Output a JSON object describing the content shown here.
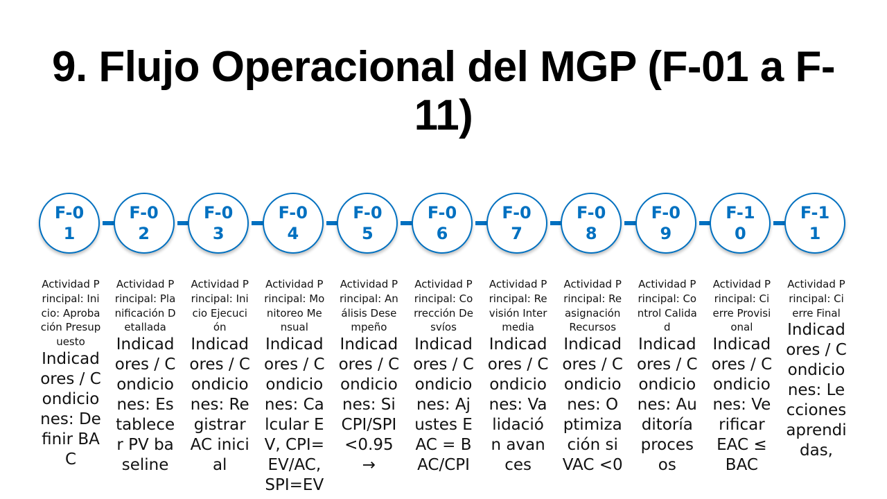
{
  "title": "9. Flujo Operacional del MGP (F-01 a F-11)",
  "accent_color": "#0070C0",
  "arrow_icon": "right-arrow",
  "steps": [
    {
      "id": "F-01",
      "activity": "Actividad Principal: Inicio: Aprobación Presupuesto",
      "indicators": "Indicadores / Condiciones: Definir BAC"
    },
    {
      "id": "F-02",
      "activity": "Actividad Principal: Planificación Detallada",
      "indicators": "Indicadores / Condiciones: Establecer PV baseline"
    },
    {
      "id": "F-03",
      "activity": "Actividad Principal: Inicio Ejecución",
      "indicators": "Indicadores / Condiciones: Registrar AC inicial"
    },
    {
      "id": "F-04",
      "activity": "Actividad Principal: Monitoreo Mensual",
      "indicators": "Indicadores / Condiciones: Calcular EV, CPI=EV/AC, SPI=EV"
    },
    {
      "id": "F-05",
      "activity": "Actividad Principal: Análisis Desempeño",
      "indicators": "Indicadores / Condiciones: Si CPI/SPI <0.95 →"
    },
    {
      "id": "F-06",
      "activity": "Actividad Principal: Corrección Desvíos",
      "indicators": "Indicadores / Condiciones: Ajustes EAC = BAC/CPI"
    },
    {
      "id": "F-07",
      "activity": "Actividad Principal: Revisión Intermedia",
      "indicators": "Indicadores / Condiciones: Validación avances"
    },
    {
      "id": "F-08",
      "activity": "Actividad Principal: Reasignación Recursos",
      "indicators": "Indicadores / Condiciones: Optimización si VAC <0"
    },
    {
      "id": "F-09",
      "activity": "Actividad Principal: Control Calidad",
      "indicators": "Indicadores / Condiciones: Auditoría procesos"
    },
    {
      "id": "F-10",
      "activity": "Actividad Principal: Cierre Provisional",
      "indicators": "Indicadores / Condiciones: Verificar EAC ≤ BAC"
    },
    {
      "id": "F-11",
      "activity": "Actividad Principal: Cierre Final",
      "indicators": "Indicadores / Condiciones: Lecciones aprendidas,"
    }
  ]
}
